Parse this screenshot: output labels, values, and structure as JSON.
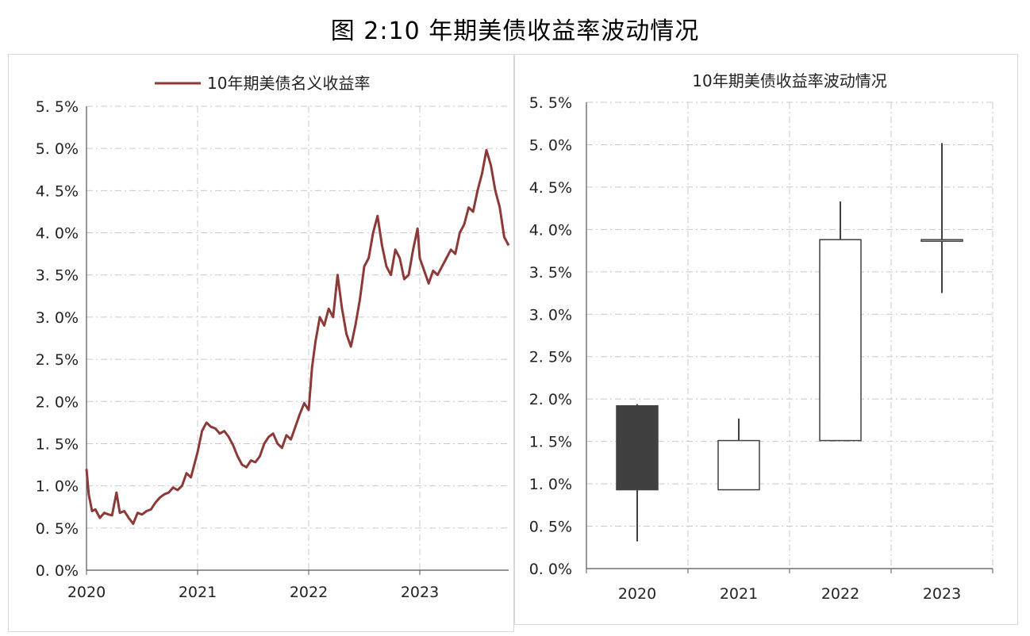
{
  "figure_title": "图 2:10 年期美债收益率波动情况",
  "chart_data": [
    {
      "type": "line",
      "title": "",
      "legend": {
        "position": "top",
        "entries": [
          "10年期美债名义收益率"
        ]
      },
      "xlabel": "",
      "ylabel": "",
      "x_ticks": [
        "2020",
        "2021",
        "2022",
        "2023"
      ],
      "y_ticks": [
        "0. 0%",
        "0. 5%",
        "1. 0%",
        "1. 5%",
        "2. 0%",
        "2. 5%",
        "3. 0%",
        "3. 5%",
        "4. 0%",
        "4. 5%",
        "5. 0%",
        "5. 5%"
      ],
      "ylim": [
        0,
        5.5
      ],
      "xlim": [
        2020.0,
        2023.8
      ],
      "grid": true,
      "color": "#8b3a37",
      "series": [
        {
          "name": "10年期美债名义收益率",
          "x": [
            2020.0,
            2020.02,
            2020.05,
            2020.08,
            2020.12,
            2020.16,
            2020.2,
            2020.23,
            2020.27,
            2020.3,
            2020.34,
            2020.38,
            2020.42,
            2020.46,
            2020.5,
            2020.54,
            2020.58,
            2020.62,
            2020.66,
            2020.7,
            2020.74,
            2020.78,
            2020.82,
            2020.86,
            2020.9,
            2020.94,
            2020.98,
            2021.0,
            2021.04,
            2021.08,
            2021.12,
            2021.16,
            2021.2,
            2021.24,
            2021.28,
            2021.32,
            2021.36,
            2021.4,
            2021.44,
            2021.48,
            2021.52,
            2021.56,
            2021.6,
            2021.64,
            2021.68,
            2021.72,
            2021.76,
            2021.8,
            2021.84,
            2021.88,
            2021.92,
            2021.96,
            2022.0,
            2022.03,
            2022.06,
            2022.1,
            2022.14,
            2022.18,
            2022.22,
            2022.26,
            2022.3,
            2022.34,
            2022.38,
            2022.42,
            2022.46,
            2022.5,
            2022.54,
            2022.58,
            2022.62,
            2022.66,
            2022.7,
            2022.74,
            2022.78,
            2022.82,
            2022.86,
            2022.9,
            2022.94,
            2022.98,
            2023.0,
            2023.04,
            2023.08,
            2023.12,
            2023.16,
            2023.2,
            2023.24,
            2023.28,
            2023.32,
            2023.36,
            2023.4,
            2023.44,
            2023.48,
            2023.52,
            2023.56,
            2023.6,
            2023.64,
            2023.68,
            2023.72,
            2023.76,
            2023.8
          ],
          "y": [
            1.2,
            0.9,
            0.7,
            0.72,
            0.62,
            0.68,
            0.66,
            0.65,
            0.92,
            0.68,
            0.7,
            0.62,
            0.55,
            0.68,
            0.66,
            0.7,
            0.72,
            0.8,
            0.86,
            0.9,
            0.92,
            0.98,
            0.95,
            1.0,
            1.15,
            1.1,
            1.3,
            1.4,
            1.65,
            1.75,
            1.7,
            1.68,
            1.62,
            1.65,
            1.58,
            1.48,
            1.35,
            1.25,
            1.22,
            1.3,
            1.28,
            1.35,
            1.5,
            1.58,
            1.62,
            1.5,
            1.45,
            1.6,
            1.55,
            1.7,
            1.85,
            1.98,
            1.9,
            2.4,
            2.7,
            3.0,
            2.9,
            3.1,
            3.0,
            3.5,
            3.1,
            2.8,
            2.65,
            2.9,
            3.2,
            3.6,
            3.7,
            4.0,
            4.2,
            3.85,
            3.6,
            3.5,
            3.8,
            3.7,
            3.45,
            3.5,
            3.8,
            4.05,
            3.7,
            3.55,
            3.4,
            3.55,
            3.5,
            3.6,
            3.7,
            3.8,
            3.75,
            4.0,
            4.1,
            4.3,
            4.25,
            4.5,
            4.7,
            4.98,
            4.8,
            4.5,
            4.3,
            3.95,
            3.85
          ]
        }
      ]
    },
    {
      "type": "candlestick",
      "title": "10年期美债收益率波动情况",
      "xlabel": "",
      "ylabel": "",
      "categories": [
        "2020",
        "2021",
        "2022",
        "2023"
      ],
      "y_ticks": [
        "0. 0%",
        "0. 5%",
        "1. 0%",
        "1. 5%",
        "2. 0%",
        "2. 5%",
        "3. 0%",
        "3. 5%",
        "4. 0%",
        "4. 5%",
        "5. 0%",
        "5. 5%"
      ],
      "ylim": [
        0,
        5.5
      ],
      "grid": true,
      "series": [
        {
          "category": "2020",
          "open": 1.92,
          "close": 0.93,
          "high": 1.94,
          "low": 0.32
        },
        {
          "category": "2021",
          "open": 0.93,
          "close": 1.51,
          "high": 1.77,
          "low": 0.93
        },
        {
          "category": "2022",
          "open": 1.51,
          "close": 3.88,
          "high": 4.33,
          "low": 1.51
        },
        {
          "category": "2023",
          "open": 3.87,
          "close": 3.88,
          "high": 5.02,
          "low": 3.25
        }
      ],
      "colors": {
        "down": "#404040",
        "up": "#ffffff",
        "outline": "#404040"
      }
    }
  ]
}
